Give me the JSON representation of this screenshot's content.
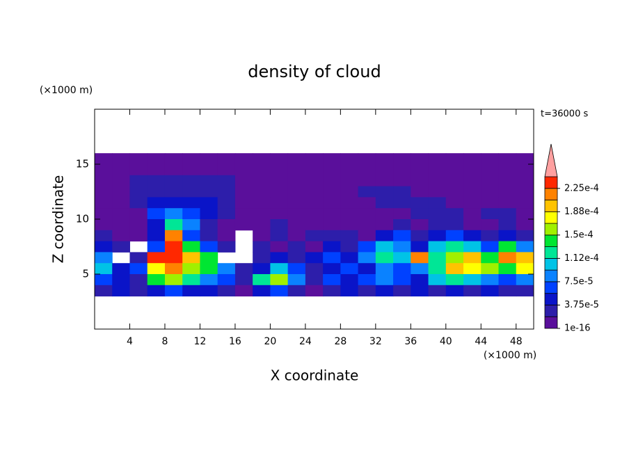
{
  "chart_data": {
    "type": "contour",
    "title": "density of cloud",
    "x_label": "X coordinate",
    "y_label": "Z coordinate",
    "x_unit": "(×1000 m)",
    "y_unit": "(×1000 m)",
    "time_label": "t=36000 s",
    "xlim": [
      0,
      50
    ],
    "ylim": [
      0,
      20
    ],
    "xticks": [
      4,
      8,
      12,
      16,
      20,
      24,
      28,
      32,
      36,
      40,
      44,
      48
    ],
    "yticks": [
      5,
      10,
      15
    ],
    "x": [
      1,
      3,
      5,
      7,
      9,
      11,
      13,
      15,
      17,
      19,
      21,
      23,
      25,
      27,
      29,
      31,
      33,
      35,
      37,
      39,
      41,
      43,
      45,
      47,
      49
    ],
    "y": [
      15.5,
      14.5,
      13.5,
      12.5,
      11.5,
      10.5,
      9.5,
      8.5,
      7.5,
      6.5,
      5.5,
      4.5,
      3.5
    ],
    "z": [
      [
        1e-05,
        1e-05,
        1e-05,
        1e-05,
        1e-05,
        1e-05,
        1e-05,
        1e-05,
        1e-05,
        1e-05,
        1e-05,
        1e-05,
        1e-05,
        1e-05,
        1e-05,
        1e-05,
        1e-05,
        1e-05,
        1e-05,
        1e-05,
        1e-05,
        1e-05,
        1e-05,
        1e-05,
        1e-05
      ],
      [
        1e-05,
        1e-05,
        1e-05,
        1e-05,
        1e-05,
        1e-05,
        1e-05,
        1e-05,
        1e-05,
        1e-05,
        1e-05,
        1e-05,
        1e-05,
        1e-05,
        1e-05,
        1e-05,
        1e-05,
        1e-05,
        1e-05,
        1e-05,
        1e-05,
        1e-05,
        1e-05,
        1e-05,
        1e-05
      ],
      [
        1e-05,
        1e-05,
        2.5e-05,
        2.5e-05,
        2.5e-05,
        2.5e-05,
        2.5e-05,
        2.5e-05,
        1e-05,
        1e-05,
        1e-05,
        1e-05,
        1e-05,
        1e-05,
        1e-05,
        1e-05,
        1e-05,
        1e-05,
        1e-05,
        1e-05,
        1e-05,
        1e-05,
        1e-05,
        1e-05,
        1e-05
      ],
      [
        1e-05,
        1e-05,
        2.5e-05,
        2.5e-05,
        2.5e-05,
        2.5e-05,
        2.5e-05,
        2.5e-05,
        1e-05,
        1e-05,
        1e-05,
        1e-05,
        1e-05,
        1e-05,
        1e-05,
        2.5e-05,
        2.5e-05,
        2.5e-05,
        1e-05,
        1e-05,
        1e-05,
        1e-05,
        1e-05,
        1e-05,
        1e-05
      ],
      [
        1e-05,
        1e-05,
        2.5e-05,
        4.5e-05,
        4.5e-05,
        4.5e-05,
        4.5e-05,
        2.5e-05,
        1e-05,
        1e-05,
        1e-05,
        1e-05,
        1e-05,
        1e-05,
        1e-05,
        1e-05,
        2.5e-05,
        2.5e-05,
        2.5e-05,
        2.5e-05,
        1e-05,
        1e-05,
        1e-05,
        1e-05,
        1e-05
      ],
      [
        1e-05,
        1e-05,
        1e-05,
        6.5e-05,
        8.5e-05,
        6.5e-05,
        4.5e-05,
        2.5e-05,
        1e-05,
        1e-05,
        1e-05,
        1e-05,
        1e-05,
        1e-05,
        1e-05,
        1e-05,
        1e-05,
        1e-05,
        2.5e-05,
        2.5e-05,
        2.5e-05,
        1e-05,
        2.5e-05,
        2.5e-05,
        1e-05
      ],
      [
        1e-05,
        1e-05,
        1e-05,
        4.5e-05,
        0.00012,
        8.5e-05,
        2.5e-05,
        1e-05,
        1e-05,
        1e-05,
        2.5e-05,
        1e-05,
        1e-05,
        1e-05,
        1e-05,
        1e-05,
        1e-05,
        2.5e-05,
        1e-05,
        2.5e-05,
        2.5e-05,
        1e-05,
        1e-05,
        2.5e-05,
        1e-05
      ],
      [
        2.5e-05,
        1e-05,
        1e-05,
        4.5e-05,
        0.000215,
        6.5e-05,
        2.5e-05,
        1e-05,
        null,
        1e-05,
        2.5e-05,
        1e-05,
        2.5e-05,
        2.5e-05,
        2.5e-05,
        1e-05,
        4.5e-05,
        6.5e-05,
        2.5e-05,
        4.5e-05,
        6.5e-05,
        4.5e-05,
        2.5e-05,
        4.5e-05,
        2.5e-05
      ],
      [
        4.5e-05,
        2.5e-05,
        null,
        6.5e-05,
        0.00024,
        0.00014,
        6.5e-05,
        2.5e-05,
        null,
        2.5e-05,
        1e-05,
        2.5e-05,
        1e-05,
        4.5e-05,
        2.5e-05,
        6.5e-05,
        0.0001,
        8.5e-05,
        4.5e-05,
        0.0001,
        0.00012,
        0.0001,
        6.5e-05,
        0.00014,
        8.5e-05
      ],
      [
        8.5e-05,
        null,
        2.5e-05,
        0.00023,
        0.00024,
        0.000195,
        0.00014,
        null,
        null,
        2.5e-05,
        4.5e-05,
        2.5e-05,
        4.5e-05,
        6.5e-05,
        4.5e-05,
        8.5e-05,
        0.00012,
        0.0001,
        0.000215,
        0.00012,
        0.00016,
        0.000195,
        0.00014,
        0.000215,
        0.000195
      ],
      [
        0.0001,
        4.5e-05,
        6.5e-05,
        0.00018,
        0.000215,
        0.00016,
        0.00014,
        8.5e-05,
        2.5e-05,
        4.5e-05,
        0.0001,
        6.5e-05,
        2.5e-05,
        4.5e-05,
        6.5e-05,
        4.5e-05,
        8.5e-05,
        6.5e-05,
        8.5e-05,
        0.00012,
        0.000195,
        0.00018,
        0.00016,
        0.00014,
        0.00018
      ],
      [
        6.5e-05,
        4.5e-05,
        2.5e-05,
        0.00014,
        0.00016,
        0.00012,
        8.5e-05,
        6.5e-05,
        2.5e-05,
        0.00012,
        0.00016,
        8.5e-05,
        2.5e-05,
        6.5e-05,
        4.5e-05,
        6.5e-05,
        8.5e-05,
        6.5e-05,
        4.5e-05,
        0.0001,
        0.00012,
        0.0001,
        8.5e-05,
        6.5e-05,
        8.5e-05
      ],
      [
        2.5e-05,
        4.5e-05,
        2.5e-05,
        4.5e-05,
        6.5e-05,
        4.5e-05,
        4.5e-05,
        2.5e-05,
        1e-05,
        4.5e-05,
        6.5e-05,
        2.5e-05,
        1e-05,
        2.5e-05,
        4.5e-05,
        2.5e-05,
        4.5e-05,
        2.5e-05,
        4.5e-05,
        2.5e-05,
        4.5e-05,
        2.5e-05,
        4.5e-05,
        2.5e-05,
        2.5e-05
      ]
    ],
    "levels": [
      1e-16,
      1.875e-05,
      3.75e-05,
      5.625e-05,
      7.5e-05,
      9.375e-05,
      0.0001125,
      0.00013125,
      0.00015,
      0.00016875,
      0.0001875,
      0.00020625,
      0.000225,
      0.00024375
    ],
    "colors": [
      "#5a0f9b",
      "#2d1eaa",
      "#0a14c8",
      "#0041ff",
      "#0a82ff",
      "#00c3e6",
      "#00e696",
      "#00e632",
      "#a0f000",
      "#ffff00",
      "#ffc300",
      "#ff8200",
      "#ff2800"
    ],
    "over_color": "#ffa0a0",
    "colorbar_ticks": [
      1e-16,
      {
        "value": 3.75e-05,
        "label": "3.75e-5"
      },
      {
        "value": 7.5e-05,
        "label": "7.5e-5"
      },
      {
        "value": 0.0001125,
        "label": "1.12e-4"
      },
      {
        "value": 0.00015,
        "label": "1.5e-4"
      },
      {
        "value": 0.0001875,
        "label": "1.88e-4"
      },
      {
        "value": 0.000225,
        "label": "2.25e-4"
      }
    ]
  }
}
